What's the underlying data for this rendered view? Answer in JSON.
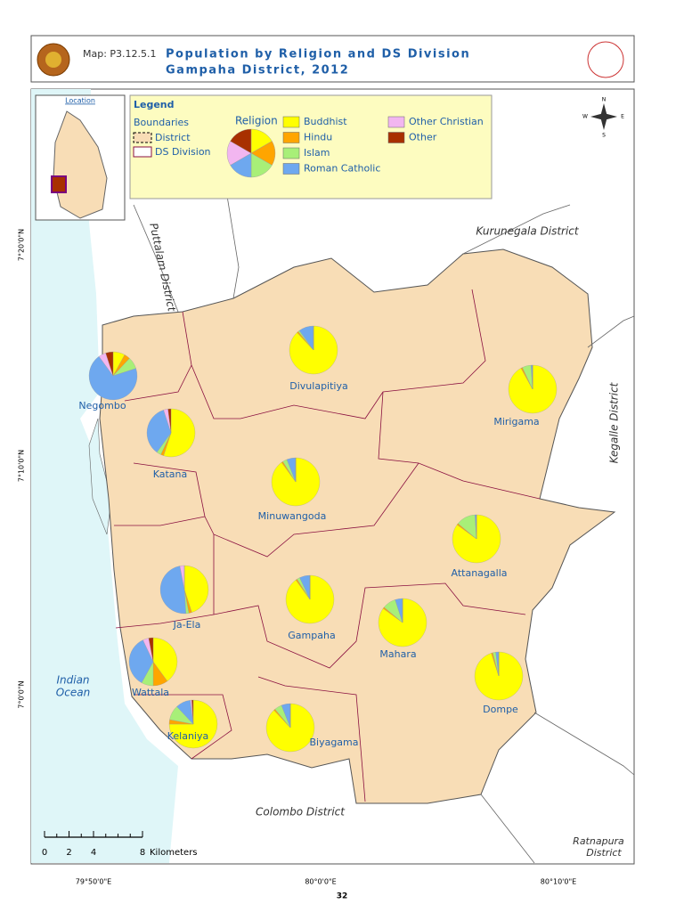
{
  "header": {
    "map_id": "Map: P3.12.5.1",
    "title_line1": "Population by Religion and DS Division",
    "title_line2": "Gampaha District, 2012"
  },
  "inset": {
    "label": "Location"
  },
  "legend": {
    "title": "Legend",
    "boundaries_title": "Boundaries",
    "boundaries": [
      "District",
      "DS Division"
    ],
    "religion_title": "Religion",
    "religions": [
      {
        "name": "Buddhist",
        "color": "#ffff00"
      },
      {
        "name": "Hindu",
        "color": "#ffa500"
      },
      {
        "name": "Islam",
        "color": "#a8ef78"
      },
      {
        "name": "Roman Catholic",
        "color": "#6ea8ef"
      },
      {
        "name": "Other Christian",
        "color": "#f2b6f0"
      },
      {
        "name": "Other",
        "color": "#a83000"
      }
    ]
  },
  "compass": {
    "n": "N",
    "e": "E",
    "s": "S",
    "w": "W"
  },
  "district_labels": {
    "kurunegala": "Kurunegala District",
    "puttalam": "Puttalam District",
    "kegalle": "Kegalle District",
    "colombo": "Colombo District",
    "ratnapura": [
      "Ratnapura",
      "District"
    ],
    "ocean": [
      "Indian",
      "Ocean"
    ]
  },
  "divisions": [
    {
      "name": "Negombo",
      "shares": [
        8,
        4,
        8,
        70,
        5,
        5
      ]
    },
    {
      "name": "Divulapitiya",
      "shares": [
        88,
        1,
        1,
        10,
        0,
        0
      ]
    },
    {
      "name": "Mirigama",
      "shares": [
        92,
        1,
        6,
        1,
        0,
        0
      ]
    },
    {
      "name": "Katana",
      "shares": [
        55,
        2,
        3,
        35,
        3,
        2
      ]
    },
    {
      "name": "Minuwangoda",
      "shares": [
        90,
        1,
        3,
        6,
        0,
        0
      ]
    },
    {
      "name": "Attanagalla",
      "shares": [
        85,
        1,
        13,
        1,
        0,
        0
      ]
    },
    {
      "name": "Ja-Ela",
      "shares": [
        45,
        2,
        2,
        48,
        3,
        0
      ]
    },
    {
      "name": "Gampaha",
      "shares": [
        90,
        1,
        2,
        7,
        0,
        0
      ]
    },
    {
      "name": "Mahara",
      "shares": [
        85,
        1,
        9,
        5,
        0,
        0
      ]
    },
    {
      "name": "Wattala",
      "shares": [
        40,
        10,
        8,
        35,
        4,
        3
      ]
    },
    {
      "name": "Dompe",
      "shares": [
        95,
        1,
        2,
        2,
        0,
        0
      ]
    },
    {
      "name": "Kelaniya",
      "shares": [
        75,
        3,
        10,
        10,
        1,
        1
      ]
    },
    {
      "name": "Biyagama",
      "shares": [
        88,
        1,
        5,
        6,
        0,
        0
      ]
    }
  ],
  "scale": {
    "ticks": [
      0,
      2,
      4,
      8
    ],
    "unit": "Kilometers"
  },
  "coords": {
    "lat": [
      "7°20'0\"N",
      "7°10'0\"N",
      "7°0'0\"N"
    ],
    "lon": [
      "79°50'0\"E",
      "80°0'0\"E",
      "80°10'0\"E"
    ]
  },
  "page_number": "32"
}
